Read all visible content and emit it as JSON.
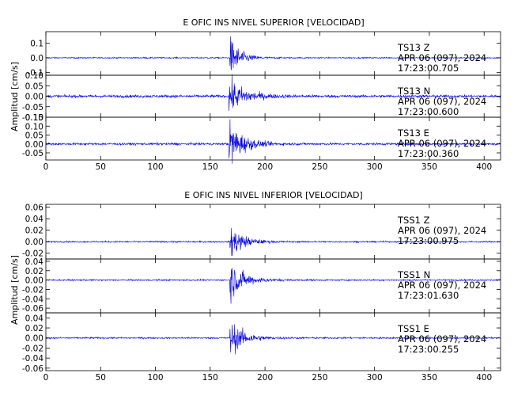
{
  "chart_data": [
    {
      "type": "line",
      "title": "E OFIC INS NIVEL SUPERIOR [VELOCIDAD]",
      "ylabel": "Amplitud [cm/s]",
      "xlim": [
        0,
        415
      ],
      "x_ticks": [
        "0",
        "50",
        "100",
        "150",
        "200",
        "250",
        "300",
        "350",
        "400"
      ],
      "color": "#0000ff",
      "panels": [
        {
          "ylim": [
            -0.12,
            0.18
          ],
          "y_ticks": [
            "0.1",
            "0.0",
            "-0.1"
          ],
          "annotation": [
            "TS13   Z",
            "APR 06 (097), 2024",
            "17:23:00.705"
          ],
          "trace": {
            "noise": 0.004,
            "onset": 168,
            "peak": 0.14,
            "decay": 9
          }
        },
        {
          "ylim": [
            -0.1,
            0.1
          ],
          "y_ticks": [
            "0.10",
            "0.05",
            "0.00",
            "-0.05",
            "-0.10"
          ],
          "annotation": [
            "TS13   N",
            "APR 06 (097), 2024",
            "17:23:00.600"
          ],
          "trace": {
            "noise": 0.006,
            "onset": 167,
            "peak": 0.08,
            "decay": 14
          }
        },
        {
          "ylim": [
            -0.09,
            0.15
          ],
          "y_ticks": [
            "0.15",
            "0.10",
            "0.05",
            "0.00",
            "-0.05"
          ],
          "annotation": [
            "TS13   E",
            "APR 06 (097), 2024",
            "17:23:00.360"
          ],
          "trace": {
            "noise": 0.006,
            "onset": 167,
            "peak": 0.13,
            "decay": 12
          }
        }
      ]
    },
    {
      "type": "line",
      "title": "E OFIC INS NIVEL INFERIOR [VELOCIDAD]",
      "ylabel": "Amplitud [cm/s]",
      "xlim": [
        0,
        415
      ],
      "x_ticks": [
        "0",
        "50",
        "100",
        "150",
        "200",
        "250",
        "300",
        "350",
        "400"
      ],
      "color": "#0000ff",
      "panels": [
        {
          "ylim": [
            -0.03,
            0.065
          ],
          "y_ticks": [
            "0.06",
            "0.04",
            "0.02",
            "0.00",
            "-0.02"
          ],
          "annotation": [
            "TSS1   Z",
            "APR 06 (097), 2024",
            "17:23:00.975"
          ],
          "trace": {
            "noise": 0.0012,
            "onset": 168,
            "peak": 0.03,
            "decay": 11
          }
        },
        {
          "ylim": [
            -0.07,
            0.045
          ],
          "y_ticks": [
            "0.04",
            "0.02",
            "0.00",
            "-0.02",
            "-0.04",
            "-0.06"
          ],
          "annotation": [
            "TSS1   N",
            "APR 06 (097), 2024",
            "17:23:01.630"
          ],
          "trace": {
            "noise": 0.0015,
            "onset": 168,
            "peak": 0.04,
            "decay": 12
          }
        },
        {
          "ylim": [
            -0.065,
            0.05
          ],
          "y_ticks": [
            "0.04",
            "0.02",
            "0.00",
            "-0.02",
            "-0.04",
            "-0.06"
          ],
          "annotation": [
            "TSS1   E",
            "APR 06 (097), 2024",
            "17:23:00.255"
          ],
          "trace": {
            "noise": 0.0015,
            "onset": 168,
            "peak": 0.035,
            "decay": 12
          }
        }
      ]
    }
  ]
}
